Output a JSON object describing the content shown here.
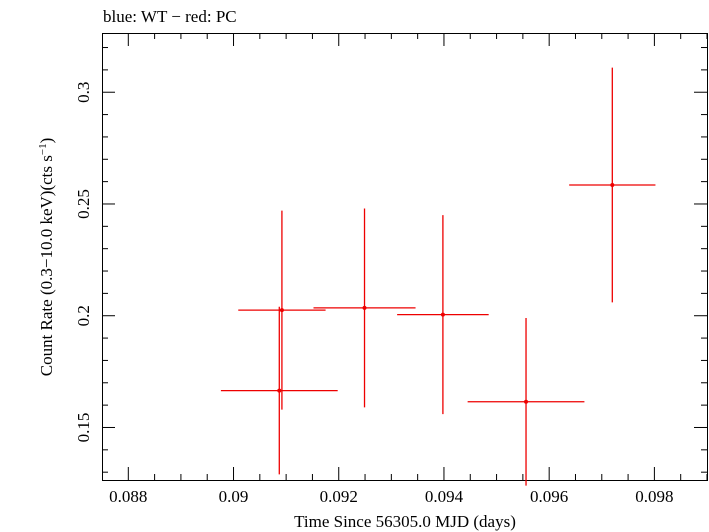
{
  "header": {
    "title": "blue: WT − red: PC"
  },
  "colors": {
    "pc": "#ee0000",
    "axis": "#000000"
  },
  "chart_data": {
    "type": "scatter",
    "title": "blue: WT − red: PC",
    "xlabel": "Time Since 56305.0 MJD (days)",
    "ylabel_main": "Count Rate (0.3−10.0 keV)(cts s",
    "ylabel_sup": "−1",
    "ylabel_close": ")",
    "xlim": [
      0.0875,
      0.099
    ],
    "ylim": [
      0.1265,
      0.3265
    ],
    "x_ticks": [
      0.088,
      0.09,
      0.092,
      0.094,
      0.096,
      0.098
    ],
    "x_tick_labels": [
      "0.088",
      "0.09",
      "0.092",
      "0.094",
      "0.096",
      "0.098"
    ],
    "y_ticks": [
      0.15,
      0.2,
      0.25,
      0.3
    ],
    "y_tick_labels": [
      "0.15",
      "0.2",
      "0.25",
      "0.3"
    ],
    "series": [
      {
        "color": "#ee0000",
        "points": [
          {
            "x": 0.09092,
            "xerr": 0.00083,
            "y": 0.2025,
            "yerr_low": 0.0445,
            "yerr_high": 0.0445
          },
          {
            "x": 0.09087,
            "xerr": 0.00111,
            "y": 0.1665,
            "yerr_low": 0.0375,
            "yerr_high": 0.0375
          },
          {
            "x": 0.09249,
            "xerr": 0.00097,
            "y": 0.2035,
            "yerr_low": 0.0445,
            "yerr_high": 0.0445
          },
          {
            "x": 0.09398,
            "xerr": 0.00087,
            "y": 0.2005,
            "yerr_low": 0.0445,
            "yerr_high": 0.0445
          },
          {
            "x": 0.09556,
            "xerr": 0.00111,
            "y": 0.1615,
            "yerr_low": 0.0375,
            "yerr_high": 0.0375
          },
          {
            "x": 0.0972,
            "xerr": 0.00082,
            "y": 0.2585,
            "yerr_low": 0.0525,
            "yerr_high": 0.0525
          }
        ]
      }
    ]
  }
}
